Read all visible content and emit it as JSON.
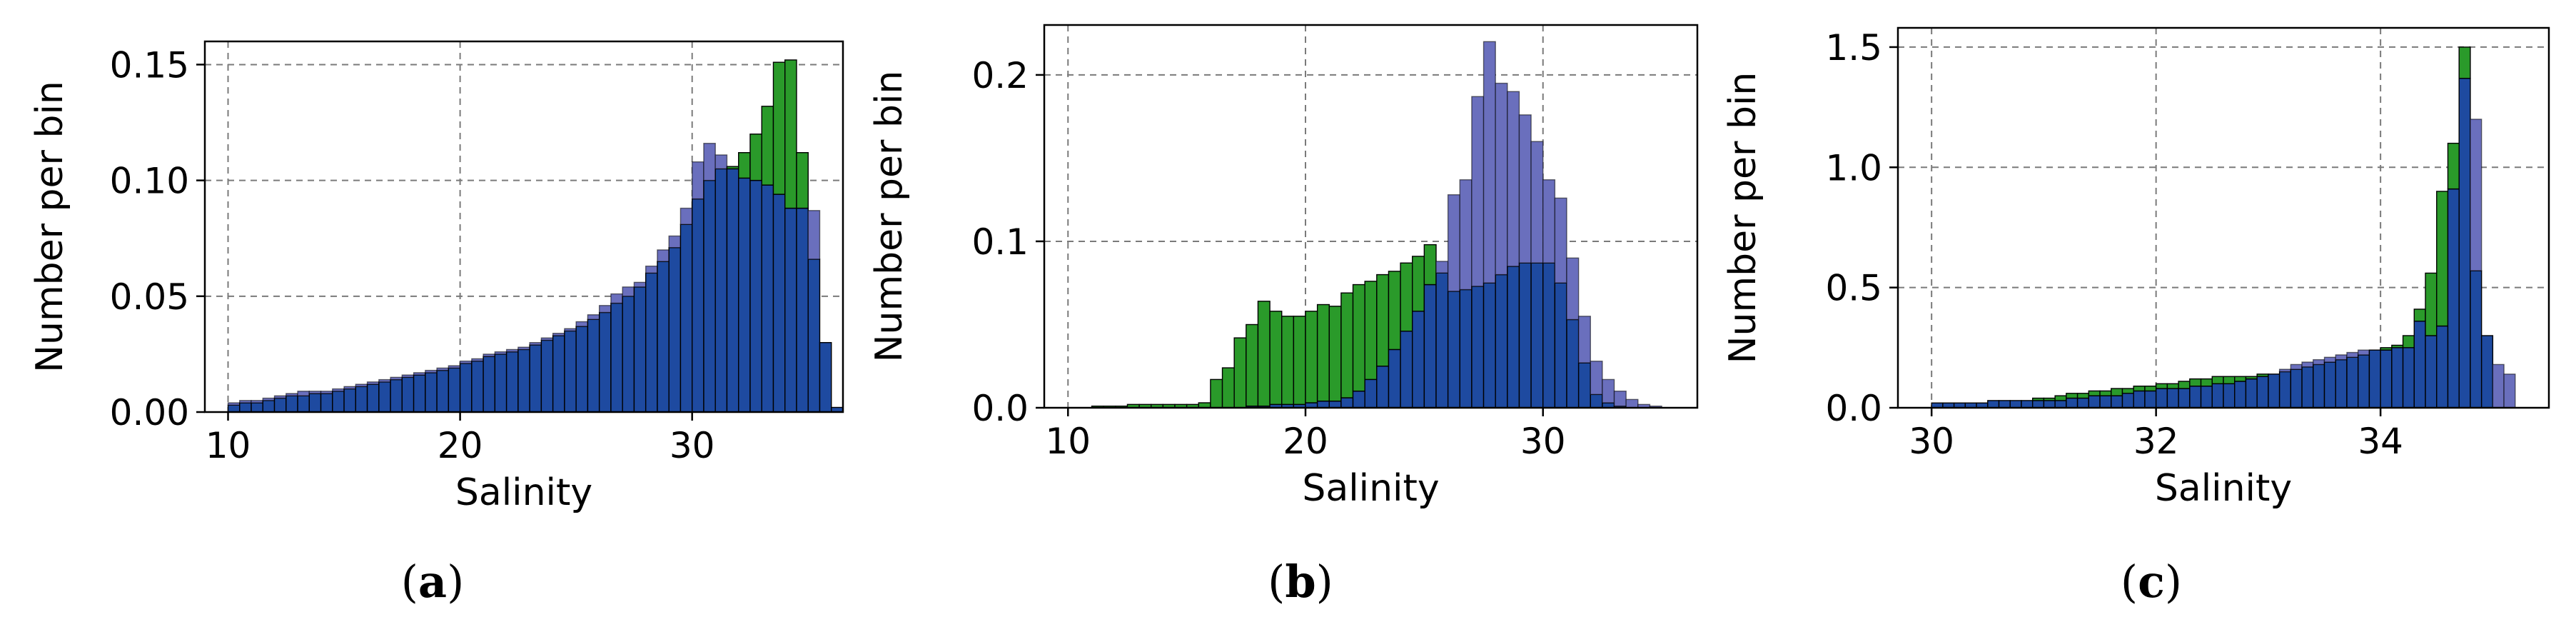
{
  "colors": {
    "green": "#2a9a2a",
    "blue": "#6a6fbd",
    "overlap": "#1e4aa0",
    "edge": "#000000"
  },
  "chart_data": [
    {
      "type": "bar",
      "panel_label": "a",
      "caption_open": "(",
      "caption_close": ")",
      "xlabel": "Salinity",
      "ylabel": "Number per bin",
      "xlim": [
        9,
        36.5
      ],
      "ylim": [
        0,
        0.16
      ],
      "xticks": [
        10,
        20,
        30
      ],
      "xtick_labels": [
        "10",
        "20",
        "30"
      ],
      "yticks": [
        0.0,
        0.05,
        0.1,
        0.15
      ],
      "ytick_labels": [
        "0.00",
        "0.05",
        "0.10",
        "0.15"
      ],
      "grid": true,
      "x_start": 10,
      "bin_width": 0.5,
      "series": [
        {
          "color": "green",
          "values": [
            0.003,
            0.004,
            0.004,
            0.005,
            0.006,
            0.007,
            0.007,
            0.008,
            0.008,
            0.009,
            0.01,
            0.011,
            0.012,
            0.013,
            0.014,
            0.015,
            0.016,
            0.017,
            0.018,
            0.019,
            0.021,
            0.022,
            0.024,
            0.025,
            0.026,
            0.027,
            0.029,
            0.031,
            0.033,
            0.035,
            0.037,
            0.04,
            0.043,
            0.047,
            0.05,
            0.054,
            0.06,
            0.065,
            0.071,
            0.081,
            0.092,
            0.1,
            0.105,
            0.106,
            0.112,
            0.12,
            0.132,
            0.151,
            0.152,
            0.112,
            0.066,
            0.03,
            0.002
          ]
        },
        {
          "color": "blue",
          "values": [
            0.004,
            0.005,
            0.005,
            0.006,
            0.007,
            0.008,
            0.009,
            0.009,
            0.009,
            0.01,
            0.011,
            0.012,
            0.013,
            0.014,
            0.015,
            0.016,
            0.017,
            0.018,
            0.019,
            0.02,
            0.022,
            0.023,
            0.025,
            0.026,
            0.027,
            0.028,
            0.03,
            0.032,
            0.034,
            0.036,
            0.039,
            0.042,
            0.046,
            0.051,
            0.054,
            0.056,
            0.063,
            0.07,
            0.076,
            0.088,
            0.108,
            0.116,
            0.111,
            0.105,
            0.101,
            0.1,
            0.098,
            0.094,
            0.088,
            0.088,
            0.087,
            0.03,
            0.002
          ]
        }
      ]
    },
    {
      "type": "bar",
      "panel_label": "b",
      "caption_open": "(",
      "caption_close": ")",
      "xlabel": "Salinity",
      "ylabel": "Number per bin",
      "xlim": [
        9,
        36.5
      ],
      "ylim": [
        0,
        0.23
      ],
      "xticks": [
        10,
        20,
        30
      ],
      "xtick_labels": [
        "10",
        "20",
        "30"
      ],
      "yticks": [
        0.0,
        0.1,
        0.2
      ],
      "ytick_labels": [
        "0.0",
        "0.1",
        "0.2"
      ],
      "grid": true,
      "x_start": 10,
      "bin_width": 0.5,
      "series": [
        {
          "color": "green",
          "values": [
            0,
            0,
            0.001,
            0.001,
            0.001,
            0.002,
            0.002,
            0.002,
            0.002,
            0.002,
            0.002,
            0.003,
            0.017,
            0.024,
            0.042,
            0.05,
            0.064,
            0.058,
            0.055,
            0.055,
            0.058,
            0.062,
            0.061,
            0.069,
            0.074,
            0.076,
            0.08,
            0.082,
            0.087,
            0.091,
            0.098,
            0.081,
            0.07,
            0.071,
            0.073,
            0.075,
            0.08,
            0.085,
            0.087,
            0.087,
            0.087,
            0.075,
            0.053,
            0.027,
            0.008,
            0.003,
            0.001,
            0,
            0,
            0,
            0,
            0
          ]
        },
        {
          "color": "blue",
          "values": [
            0,
            0,
            0,
            0,
            0,
            0,
            0,
            0,
            0,
            0,
            0,
            0,
            0,
            0,
            0,
            0.001,
            0.001,
            0.002,
            0.002,
            0.002,
            0.003,
            0.004,
            0.004,
            0.006,
            0.01,
            0.017,
            0.025,
            0.035,
            0.046,
            0.058,
            0.074,
            0.088,
            0.128,
            0.137,
            0.187,
            0.22,
            0.195,
            0.19,
            0.176,
            0.16,
            0.137,
            0.126,
            0.09,
            0.055,
            0.028,
            0.017,
            0.01,
            0.005,
            0.002,
            0.001,
            0,
            0
          ]
        }
      ]
    },
    {
      "type": "bar",
      "panel_label": "c",
      "caption_open": "(",
      "caption_close": ")",
      "xlabel": "Salinity",
      "ylabel": "Number per bin",
      "xlim": [
        29.7,
        35.5
      ],
      "ylim": [
        0,
        1.58
      ],
      "xticks": [
        30,
        32,
        34
      ],
      "xtick_labels": [
        "30",
        "32",
        "34"
      ],
      "yticks": [
        0.0,
        0.5,
        1.0,
        1.5
      ],
      "ytick_labels": [
        "0.0",
        "0.5",
        "1.0",
        "1.5"
      ],
      "grid": true,
      "x_start": 30,
      "bin_width": 0.1,
      "series": [
        {
          "color": "green",
          "values": [
            0.02,
            0.02,
            0.02,
            0.02,
            0.02,
            0.03,
            0.03,
            0.03,
            0.03,
            0.04,
            0.04,
            0.05,
            0.06,
            0.06,
            0.07,
            0.07,
            0.08,
            0.08,
            0.09,
            0.09,
            0.1,
            0.1,
            0.11,
            0.12,
            0.12,
            0.13,
            0.13,
            0.13,
            0.13,
            0.14,
            0.14,
            0.15,
            0.16,
            0.17,
            0.18,
            0.19,
            0.2,
            0.21,
            0.22,
            0.24,
            0.25,
            0.26,
            0.3,
            0.41,
            0.56,
            0.9,
            1.1,
            1.5,
            0.57,
            0.3,
            0.0
          ]
        },
        {
          "color": "blue",
          "values": [
            0.02,
            0.02,
            0.02,
            0.02,
            0.02,
            0.03,
            0.03,
            0.03,
            0.03,
            0.03,
            0.03,
            0.03,
            0.04,
            0.04,
            0.05,
            0.05,
            0.05,
            0.06,
            0.07,
            0.07,
            0.08,
            0.08,
            0.08,
            0.09,
            0.09,
            0.1,
            0.1,
            0.11,
            0.12,
            0.13,
            0.14,
            0.16,
            0.18,
            0.19,
            0.2,
            0.21,
            0.22,
            0.23,
            0.24,
            0.24,
            0.24,
            0.25,
            0.25,
            0.36,
            0.3,
            0.34,
            0.91,
            1.37,
            1.2,
            0.3,
            0.18,
            0.14
          ]
        }
      ]
    }
  ]
}
